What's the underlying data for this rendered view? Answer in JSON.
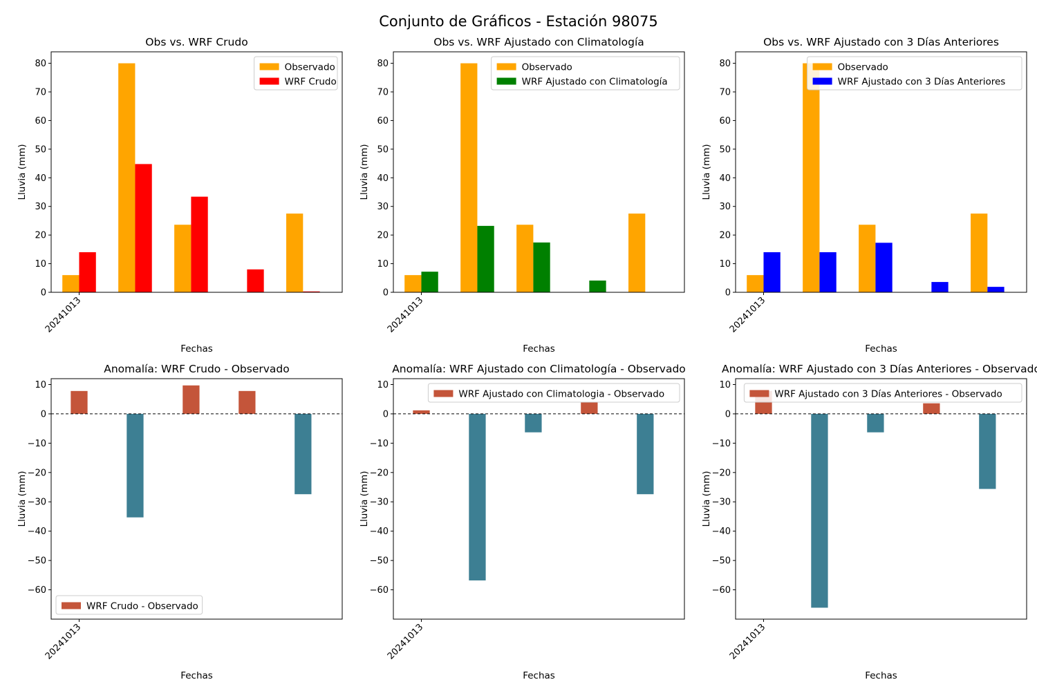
{
  "figure": {
    "suptitle": "Conjunto de Gráficos - Estación 98075"
  },
  "chart_data": [
    {
      "id": "p1",
      "type": "bar",
      "title": "Obs vs. WRF Crudo",
      "xlabel": "Fechas",
      "ylabel": "Lluvia (mm)",
      "xtick_labels": [
        "20241013"
      ],
      "ylim": [
        0,
        84
      ],
      "yticks": [
        0,
        10,
        20,
        30,
        40,
        50,
        60,
        70,
        80
      ],
      "legend_position": "top-right",
      "series": [
        {
          "name": "Observado",
          "color": "#ffa500",
          "values": [
            6,
            80,
            23.6,
            0,
            27.5
          ]
        },
        {
          "name": "WRF Crudo",
          "color": "#ff0000",
          "values": [
            14,
            44.8,
            33.4,
            8,
            0.3
          ]
        }
      ]
    },
    {
      "id": "p2",
      "type": "bar",
      "title": "Obs vs. WRF Ajustado con Climatología",
      "xlabel": "Fechas",
      "ylabel": "Lluvia (mm)",
      "xtick_labels": [
        "20241013"
      ],
      "ylim": [
        0,
        84
      ],
      "yticks": [
        0,
        10,
        20,
        30,
        40,
        50,
        60,
        70,
        80
      ],
      "legend_position": "top-right",
      "series": [
        {
          "name": "Observado",
          "color": "#ffa500",
          "values": [
            6,
            80,
            23.6,
            0,
            27.5
          ]
        },
        {
          "name": "WRF Ajustado con Climatología",
          "color": "#008000",
          "values": [
            7.2,
            23.2,
            17.4,
            4.1,
            0
          ]
        }
      ]
    },
    {
      "id": "p3",
      "type": "bar",
      "title": "Obs vs. WRF Ajustado con 3 Días Anteriores",
      "xlabel": "Fechas",
      "ylabel": "Lluvia (mm)",
      "xtick_labels": [
        "20241013"
      ],
      "ylim": [
        0,
        84
      ],
      "yticks": [
        0,
        10,
        20,
        30,
        40,
        50,
        60,
        70,
        80
      ],
      "legend_position": "top-right",
      "series": [
        {
          "name": "Observado",
          "color": "#ffa500",
          "values": [
            6,
            80,
            23.6,
            0,
            27.5
          ]
        },
        {
          "name": "WRF Ajustado con 3 Días Anteriores",
          "color": "#0000ff",
          "values": [
            14,
            14,
            17.3,
            3.6,
            1.9
          ]
        }
      ]
    },
    {
      "id": "p4",
      "type": "bar",
      "title": "Anomalía: WRF Crudo - Observado",
      "xlabel": "Fechas",
      "ylabel": "Lluvia (mm)",
      "xtick_labels": [
        "20241013"
      ],
      "ylim": [
        -70,
        12
      ],
      "yticks": [
        -60,
        -50,
        -40,
        -30,
        -20,
        -10,
        0,
        10
      ],
      "zero_line": true,
      "legend_position": "lower-left",
      "positive_color": "#c4553a",
      "negative_color": "#3d7f93",
      "series": [
        {
          "name": "WRF Crudo - Observado",
          "values": [
            7.8,
            -35.3,
            9.7,
            7.8,
            -27.4
          ]
        }
      ]
    },
    {
      "id": "p5",
      "type": "bar",
      "title": "Anomalía: WRF Ajustado con Climatología - Observado",
      "xlabel": "Fechas",
      "ylabel": "Lluvia (mm)",
      "xtick_labels": [
        "20241013"
      ],
      "ylim": [
        -70,
        12
      ],
      "yticks": [
        -60,
        -50,
        -40,
        -30,
        -20,
        -10,
        0,
        10
      ],
      "zero_line": true,
      "legend_position": "upper-right",
      "positive_color": "#c4553a",
      "negative_color": "#3d7f93",
      "series": [
        {
          "name": "WRF Ajustado con Climatologia - Observado",
          "values": [
            1.2,
            -56.8,
            -6.3,
            4.1,
            -27.4
          ]
        }
      ]
    },
    {
      "id": "p6",
      "type": "bar",
      "title": "Anomalía: WRF Ajustado con 3 Días Anteriores - Observado",
      "xlabel": "Fechas",
      "ylabel": "Lluvia (mm)",
      "xtick_labels": [
        "20241013"
      ],
      "ylim": [
        -70,
        12
      ],
      "yticks": [
        -60,
        -50,
        -40,
        -30,
        -20,
        -10,
        0,
        10
      ],
      "zero_line": true,
      "legend_position": "upper-right",
      "positive_color": "#c4553a",
      "negative_color": "#3d7f93",
      "series": [
        {
          "name": "WRF Ajustado con 3 Días Anteriores - Observado",
          "values": [
            7.8,
            -66.1,
            -6.3,
            3.6,
            -25.6
          ]
        }
      ]
    }
  ]
}
